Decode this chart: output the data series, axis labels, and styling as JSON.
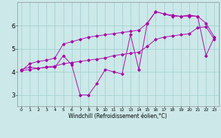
{
  "xlabel": "Windchill (Refroidissement éolien,°C)",
  "background_color": "#cce8e8",
  "line_color": "#aa00aa",
  "x": [
    0,
    1,
    2,
    3,
    4,
    5,
    6,
    7,
    8,
    9,
    10,
    11,
    12,
    13,
    14,
    15,
    16,
    17,
    18,
    19,
    20,
    21,
    22,
    23
  ],
  "series1": [
    4.1,
    4.2,
    4.15,
    4.2,
    4.2,
    4.7,
    4.3,
    3.0,
    3.0,
    3.5,
    4.1,
    4.0,
    3.9,
    5.6,
    4.1,
    6.1,
    6.6,
    6.5,
    6.4,
    6.4,
    6.4,
    6.4,
    4.7,
    5.5
  ],
  "series2": [
    4.05,
    4.35,
    4.45,
    4.5,
    4.6,
    5.2,
    5.3,
    5.4,
    5.5,
    5.55,
    5.6,
    5.65,
    5.7,
    5.75,
    5.8,
    6.1,
    6.6,
    6.5,
    6.45,
    6.4,
    6.45,
    6.4,
    6.1,
    5.5
  ],
  "series3": [
    4.05,
    4.1,
    4.15,
    4.2,
    4.25,
    4.35,
    4.4,
    4.45,
    4.5,
    4.55,
    4.6,
    4.7,
    4.75,
    4.8,
    4.85,
    5.1,
    5.4,
    5.5,
    5.55,
    5.6,
    5.65,
    5.9,
    5.95,
    5.4
  ],
  "ylim": [
    2.5,
    7.0
  ],
  "yticks": [
    3,
    4,
    5,
    6
  ],
  "xlim": [
    -0.5,
    23.5
  ],
  "grid_color": "#99cccc",
  "figsize": [
    3.2,
    2.0
  ],
  "dpi": 100
}
